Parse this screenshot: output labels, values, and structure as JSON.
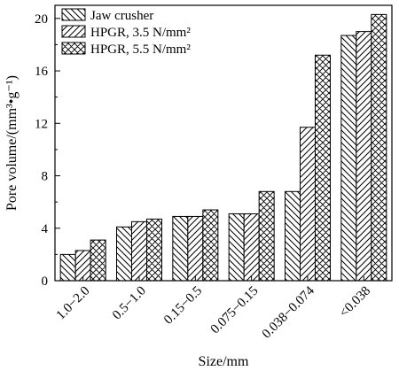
{
  "chart_data": {
    "type": "bar",
    "xlabel": "Size/mm",
    "ylabel": "Pore volume/(mm³•g⁻¹)",
    "ylim": [
      0,
      21
    ],
    "y_ticks": [
      "0",
      "4",
      "8",
      "12",
      "16",
      "20"
    ],
    "y_tick_values": [
      0,
      4,
      8,
      12,
      16,
      20
    ],
    "categories": [
      "1.0−2.0",
      "0.5−1.0",
      "0.15−0.5",
      "0.075−0.15",
      "0.038−0.074",
      "<0.038"
    ],
    "series": [
      {
        "name": "Jaw crusher",
        "pattern": "backslash",
        "values": [
          2.0,
          4.1,
          4.9,
          5.1,
          6.8,
          18.7
        ]
      },
      {
        "name": "HPGR, 3.5 N/mm²",
        "pattern": "slash",
        "values": [
          2.3,
          4.5,
          4.9,
          5.1,
          11.7,
          19.0
        ]
      },
      {
        "name": "HPGR, 5.5 N/mm²",
        "pattern": "crosshatch",
        "values": [
          3.1,
          4.7,
          5.4,
          6.8,
          17.2,
          20.3
        ]
      }
    ],
    "legend_position": "top-left",
    "grid": false
  }
}
